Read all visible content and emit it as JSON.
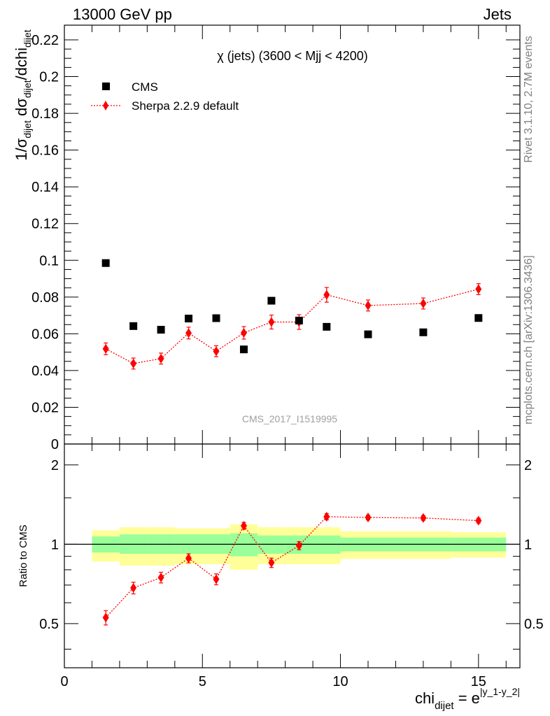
{
  "header": {
    "left": "13000 GeV pp",
    "right": "Jets"
  },
  "side_labels": {
    "rivet": "Rivet 3.1.10,  2.7M events",
    "mcplots": "mcplots.cern.ch [arXiv:1306.3436]"
  },
  "chart_data": [
    {
      "type": "scatter",
      "title": "χ (jets) (3600 < Mjj < 4200)",
      "watermark": "CMS_2017_I1519995",
      "ylabel_parts": {
        "a": "1/σ",
        "a_sub": "dijet",
        "b": " dσ",
        "b_sub": "dijet",
        "c": "/dchi",
        "c_sub": "dijet"
      },
      "xlim": [
        0,
        16.5
      ],
      "ylim": [
        0,
        0.228
      ],
      "yticks": [
        0,
        0.02,
        0.04,
        0.06,
        0.08,
        0.1,
        0.12,
        0.14,
        0.16,
        0.18,
        0.2,
        0.22
      ],
      "ytick_labels": [
        "0",
        "0.02",
        "0.04",
        "0.06",
        "0.08",
        "0.1",
        "0.12",
        "0.14",
        "0.16",
        "0.18",
        "0.2",
        "0.22"
      ],
      "legend_position": "top-left",
      "series": [
        {
          "name": "CMS",
          "marker": "square",
          "color": "#000000",
          "x": [
            1.5,
            2.5,
            3.5,
            4.5,
            5.5,
            6.5,
            7.5,
            8.5,
            9.5,
            11,
            13,
            15
          ],
          "y": [
            0.0985,
            0.0642,
            0.0622,
            0.0683,
            0.0685,
            0.0515,
            0.078,
            0.0672,
            0.0638,
            0.0597,
            0.0608,
            0.0686
          ]
        },
        {
          "name": "Sherpa 2.2.9 default",
          "marker": "diamond",
          "color": "#ff0000",
          "line": "dotted",
          "x": [
            1.5,
            2.5,
            3.5,
            4.5,
            5.5,
            6.5,
            7.5,
            8.5,
            9.5,
            11,
            13,
            15
          ],
          "y": [
            0.0518,
            0.0438,
            0.0465,
            0.0604,
            0.0505,
            0.0605,
            0.0664,
            0.0664,
            0.0812,
            0.0754,
            0.0765,
            0.0843
          ],
          "yerr": [
            0.0032,
            0.003,
            0.003,
            0.0032,
            0.003,
            0.0034,
            0.0038,
            0.004,
            0.004,
            0.003,
            0.003,
            0.003
          ]
        }
      ]
    },
    {
      "type": "scatter",
      "ylabel": "Ratio to CMS",
      "xlabel_parts": {
        "main": "chi",
        "sub": "dijet",
        "eq": " = e",
        "sup": "|y_1-y_2|"
      },
      "xlim": [
        0,
        16.5
      ],
      "ylim": [
        0.34,
        2.4
      ],
      "xticks": [
        0,
        5,
        10,
        15
      ],
      "xtick_labels": [
        "0",
        "5",
        "10",
        "15"
      ],
      "yticks": [
        0.5,
        1,
        2
      ],
      "ytick_labels": [
        "0.5",
        "1",
        "2"
      ],
      "reference_line": 1,
      "bands": [
        {
          "x0": 1,
          "x1": 2,
          "inner": [
            0.93,
            1.07
          ],
          "outer": [
            0.86,
            1.13
          ]
        },
        {
          "x0": 2,
          "x1": 3,
          "inner": [
            0.92,
            1.09
          ],
          "outer": [
            0.83,
            1.16
          ]
        },
        {
          "x0": 3,
          "x1": 4,
          "inner": [
            0.92,
            1.09
          ],
          "outer": [
            0.83,
            1.16
          ]
        },
        {
          "x0": 4,
          "x1": 5,
          "inner": [
            0.92,
            1.09
          ],
          "outer": [
            0.84,
            1.15
          ]
        },
        {
          "x0": 5,
          "x1": 6,
          "inner": [
            0.92,
            1.09
          ],
          "outer": [
            0.84,
            1.15
          ]
        },
        {
          "x0": 6,
          "x1": 7,
          "inner": [
            0.9,
            1.1
          ],
          "outer": [
            0.8,
            1.19
          ]
        },
        {
          "x0": 7,
          "x1": 8,
          "inner": [
            0.92,
            1.08
          ],
          "outer": [
            0.84,
            1.16
          ]
        },
        {
          "x0": 8,
          "x1": 10,
          "inner": [
            0.92,
            1.08
          ],
          "outer": [
            0.84,
            1.16
          ]
        },
        {
          "x0": 10,
          "x1": 12,
          "inner": [
            0.94,
            1.06
          ],
          "outer": [
            0.88,
            1.12
          ]
        },
        {
          "x0": 12,
          "x1": 14,
          "inner": [
            0.94,
            1.06
          ],
          "outer": [
            0.88,
            1.12
          ]
        },
        {
          "x0": 14,
          "x1": 16,
          "inner": [
            0.94,
            1.06
          ],
          "outer": [
            0.89,
            1.11
          ]
        }
      ],
      "band_colors": {
        "inner": "#99ff99",
        "outer": "#ffff99"
      },
      "series": [
        {
          "name": "Sherpa 2.2.9 default",
          "marker": "diamond",
          "color": "#ff0000",
          "line": "dotted",
          "x": [
            1.5,
            2.5,
            3.5,
            4.5,
            5.5,
            6.5,
            7.5,
            8.5,
            9.5,
            11,
            13,
            15
          ],
          "y": [
            0.527,
            0.683,
            0.748,
            0.885,
            0.737,
            1.175,
            0.851,
            0.988,
            1.272,
            1.263,
            1.258,
            1.229
          ],
          "yerr": [
            0.033,
            0.035,
            0.035,
            0.035,
            0.035,
            0.035,
            0.035,
            0.035,
            0.035,
            0.025,
            0.025,
            0.025
          ]
        }
      ]
    }
  ]
}
